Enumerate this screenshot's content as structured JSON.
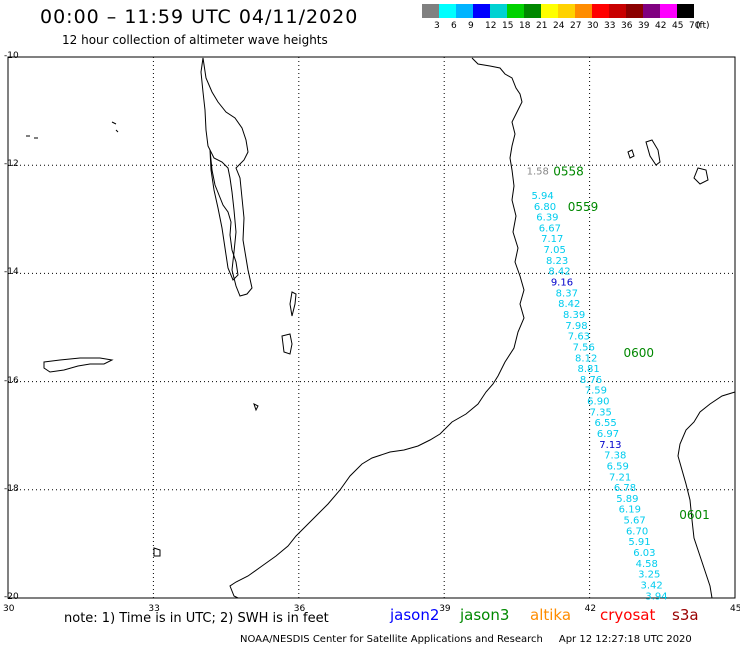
{
  "header": {
    "title": "00:00 – 11:59 UTC 04/11/2020",
    "subtitle": "12 hour collection of altimeter wave heights"
  },
  "legend": {
    "unit": "(ft)",
    "colors": [
      "#808080",
      "#00ffff",
      "#00b4ff",
      "#0000ff",
      "#00d2d2",
      "#00d200",
      "#008800",
      "#ffff00",
      "#ffd200",
      "#ff8c00",
      "#ff0000",
      "#c80000",
      "#8b0000",
      "#800080",
      "#ff00ff",
      "#000000"
    ],
    "labels": [
      "3",
      "6",
      "9",
      "12",
      "15",
      "18",
      "21",
      "24",
      "27",
      "30",
      "33",
      "36",
      "39",
      "42",
      "45",
      "70"
    ]
  },
  "map": {
    "lat_labels": [
      "-10",
      "-12",
      "-14",
      "-16",
      "-18",
      "-20"
    ],
    "lon_labels": [
      "30",
      "33",
      "36",
      "39",
      "42",
      "45"
    ],
    "lon_range": [
      30,
      45
    ],
    "lat_range": [
      -20,
      -10
    ],
    "track_times": [
      {
        "label": "0558",
        "lon": 41.25,
        "lat": -12.1
      },
      {
        "label": "0559",
        "lon": 41.55,
        "lat": -12.75
      },
      {
        "label": "0600",
        "lon": 42.7,
        "lat": -15.45
      },
      {
        "label": "0601",
        "lon": 43.85,
        "lat": -18.45
      }
    ],
    "swh_points": [
      {
        "v": "1.58",
        "lon": 40.7,
        "lat": -12.1,
        "color": "#888888"
      },
      {
        "v": "5.94",
        "lon": 40.8,
        "lat": -12.55,
        "color": "#00ccee"
      },
      {
        "v": "6.80",
        "lon": 40.85,
        "lat": -12.75,
        "color": "#00ccee"
      },
      {
        "v": "6.39",
        "lon": 40.9,
        "lat": -12.95,
        "color": "#00ccee"
      },
      {
        "v": "6.67",
        "lon": 40.95,
        "lat": -13.15,
        "color": "#00ccee"
      },
      {
        "v": "7.17",
        "lon": 41.0,
        "lat": -13.35,
        "color": "#00ccee"
      },
      {
        "v": "7.05",
        "lon": 41.05,
        "lat": -13.55,
        "color": "#00ccee"
      },
      {
        "v": "8.23",
        "lon": 41.1,
        "lat": -13.75,
        "color": "#00ccee"
      },
      {
        "v": "8.42",
        "lon": 41.15,
        "lat": -13.95,
        "color": "#00ccee"
      },
      {
        "v": "9.16",
        "lon": 41.2,
        "lat": -14.15,
        "color": "#0000cc"
      },
      {
        "v": "8.37",
        "lon": 41.3,
        "lat": -14.35,
        "color": "#00ccee"
      },
      {
        "v": "8.42",
        "lon": 41.35,
        "lat": -14.55,
        "color": "#00ccee"
      },
      {
        "v": "8.39",
        "lon": 41.45,
        "lat": -14.75,
        "color": "#00ccee"
      },
      {
        "v": "7.98",
        "lon": 41.5,
        "lat": -14.95,
        "color": "#00ccee"
      },
      {
        "v": "7.63",
        "lon": 41.55,
        "lat": -15.15,
        "color": "#00ccee"
      },
      {
        "v": "7.56",
        "lon": 41.65,
        "lat": -15.35,
        "color": "#00ccee"
      },
      {
        "v": "8.12",
        "lon": 41.7,
        "lat": -15.55,
        "color": "#00ccee"
      },
      {
        "v": "8.81",
        "lon": 41.75,
        "lat": -15.75,
        "color": "#00ccee"
      },
      {
        "v": "8.76",
        "lon": 41.8,
        "lat": -15.95,
        "color": "#00ccee"
      },
      {
        "v": "7.59",
        "lon": 41.9,
        "lat": -16.15,
        "color": "#00ccee"
      },
      {
        "v": "6.90",
        "lon": 41.95,
        "lat": -16.35,
        "color": "#00ccee"
      },
      {
        "v": "7.35",
        "lon": 42.0,
        "lat": -16.55,
        "color": "#00ccee"
      },
      {
        "v": "6.55",
        "lon": 42.1,
        "lat": -16.75,
        "color": "#00ccee"
      },
      {
        "v": "6.97",
        "lon": 42.15,
        "lat": -16.95,
        "color": "#00ccee"
      },
      {
        "v": "7.13",
        "lon": 42.2,
        "lat": -17.15,
        "color": "#0000cc"
      },
      {
        "v": "7.38",
        "lon": 42.3,
        "lat": -17.35,
        "color": "#00ccee"
      },
      {
        "v": "6.59",
        "lon": 42.35,
        "lat": -17.55,
        "color": "#00ccee"
      },
      {
        "v": "7.21",
        "lon": 42.4,
        "lat": -17.75,
        "color": "#00ccee"
      },
      {
        "v": "6.78",
        "lon": 42.5,
        "lat": -17.95,
        "color": "#00ccee"
      },
      {
        "v": "5.89",
        "lon": 42.55,
        "lat": -18.15,
        "color": "#00ccee"
      },
      {
        "v": "6.19",
        "lon": 42.6,
        "lat": -18.35,
        "color": "#00ccee"
      },
      {
        "v": "5.67",
        "lon": 42.7,
        "lat": -18.55,
        "color": "#00ccee"
      },
      {
        "v": "6.70",
        "lon": 42.75,
        "lat": -18.75,
        "color": "#00ccee"
      },
      {
        "v": "5.91",
        "lon": 42.8,
        "lat": -18.95,
        "color": "#00ccee"
      },
      {
        "v": "6.03",
        "lon": 42.9,
        "lat": -19.15,
        "color": "#00ccee"
      },
      {
        "v": "4.58",
        "lon": 42.95,
        "lat": -19.35,
        "color": "#00ccee"
      },
      {
        "v": "3.25",
        "lon": 43.0,
        "lat": -19.55,
        "color": "#00ccee"
      },
      {
        "v": "3.42",
        "lon": 43.05,
        "lat": -19.75,
        "color": "#00ccee"
      },
      {
        "v": "3.94",
        "lon": 43.15,
        "lat": -19.95,
        "color": "#00ccee"
      }
    ]
  },
  "footer": {
    "note": "note: 1) Time is in UTC; 2) SWH is in feet",
    "satellites": [
      {
        "name": "jason2",
        "color": "#0000ff"
      },
      {
        "name": "jason3",
        "color": "#008800"
      },
      {
        "name": "altika",
        "color": "#ff8c00"
      },
      {
        "name": "cryosat",
        "color": "#ff0000"
      },
      {
        "name": "s3a",
        "color": "#990000"
      }
    ],
    "credit": "NOAA/NESDIS Center for Satellite Applications and Research",
    "timestamp": "Apr 12 12:27:18 UTC 2020"
  }
}
